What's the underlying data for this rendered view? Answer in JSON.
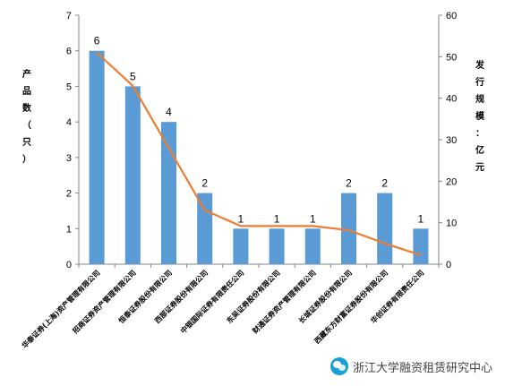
{
  "chart_data": {
    "type": "bar+line",
    "categories": [
      "华泰证券(上海)资产管理有限公司",
      "招商证券资产管理有限公司",
      "恒泰证券股份有限公司",
      "西部证券股份有限公司",
      "中银国际证券有限责任公司",
      "东吴证券股份有限公司",
      "财通证券资产管理有限公司",
      "长城证券股份有限公司",
      "西藏东方财富证券股份有限公司",
      "华创证券有限责任公司"
    ],
    "series": [
      {
        "axis": "left",
        "type": "bar",
        "color": "#5b9bd5",
        "values": [
          6,
          5,
          4,
          2,
          1,
          1,
          1,
          2,
          2,
          1
        ]
      },
      {
        "axis": "right",
        "type": "line",
        "color": "#ed7d31",
        "values": [
          51,
          43,
          28,
          13,
          9.2,
          9.2,
          9.2,
          8.2,
          5,
          2.2
        ]
      }
    ],
    "ylabel": "产品数（只）",
    "y2label": "发行规模：亿元",
    "ylim": [
      0,
      7
    ],
    "y2lim": [
      0,
      60
    ],
    "yticks": [
      "0",
      "1",
      "2",
      "3",
      "4",
      "5",
      "6",
      "7"
    ],
    "y2ticks": [
      "0",
      "10",
      "20",
      "30",
      "40",
      "50",
      "60"
    ],
    "grid": false,
    "legend": "none"
  },
  "watermark": {
    "text": "浙江大学融资租赁研究中心",
    "icon": "chat-bubble-icon"
  }
}
